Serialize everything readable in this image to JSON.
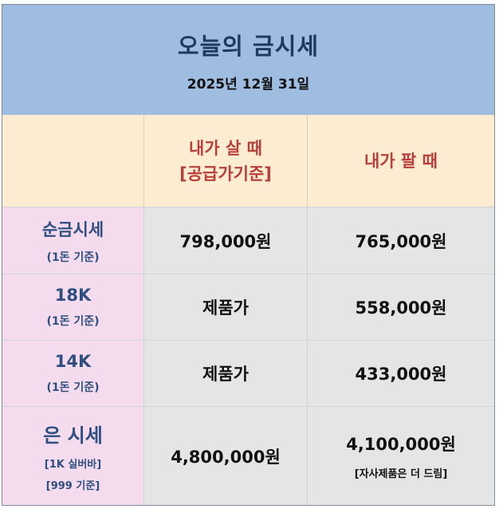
{
  "header": {
    "title": "오늘의 금시세",
    "date": "2025년 12월 31일"
  },
  "columns": {
    "buy_line1": "내가 살 때",
    "buy_line2": "[공급가기준]",
    "sell": "내가 팔 때"
  },
  "rows": [
    {
      "label": "순금시세",
      "sub": "(1돈 기준)",
      "buy": "798,000원",
      "sell": "765,000원"
    },
    {
      "label": "18K",
      "sub": "(1돈 기준)",
      "buy": "제품가",
      "sell": "558,000원"
    },
    {
      "label": "14K",
      "sub": "(1돈 기준)",
      "buy": "제품가",
      "sell": "433,000원"
    },
    {
      "label": "은 시세",
      "sub": "[1K 실버바]",
      "sub2": "[999 기준]",
      "buy": "4,800,000원",
      "sell": "4,100,000원",
      "sell_note": "[자사제품은 더 드림]"
    }
  ],
  "colors": {
    "header_bg": "#9ebde0",
    "column_header_bg": "#fcecd2",
    "label_bg": "#f4dcee",
    "value_bg": "#e5e5e5",
    "accent_red": "#b8403a",
    "label_blue": "#2f4f80"
  }
}
